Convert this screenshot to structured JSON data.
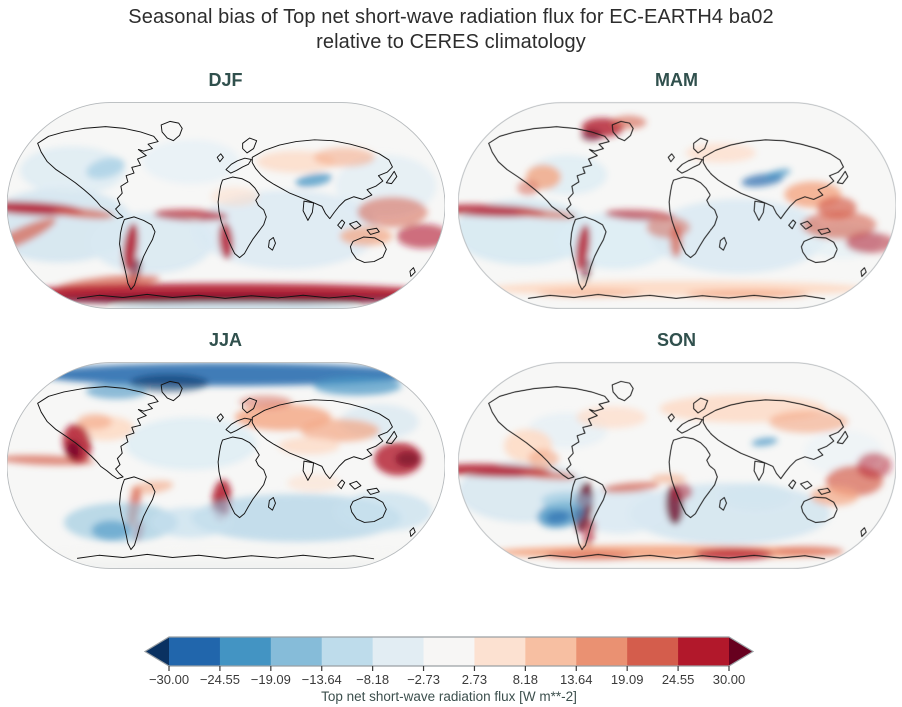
{
  "figure": {
    "title_line1": "Seasonal bias of Top net short-wave radiation flux for EC-EARTH4 ba02",
    "title_line2": "relative to CERES climatology"
  },
  "chart_data": {
    "type": "heatmap",
    "subtype": "global_map_grid",
    "projection": "Robinson",
    "title": "Seasonal bias of Top net short-wave radiation flux for EC-EARTH4 ba02 relative to CERES climatology",
    "model": "EC-EARTH4 ba02",
    "reference": "CERES climatology",
    "variable": "Top net short-wave radiation flux",
    "units": "W m**-2",
    "palette_name": "RdBu_r",
    "colorbar": {
      "vmin": -30.0,
      "vmax": 30.0,
      "extend": "both",
      "ticks": [
        "−30.00",
        "−24.55",
        "−19.09",
        "−13.64",
        "−8.18",
        "−2.73",
        "2.73",
        "8.18",
        "13.64",
        "19.09",
        "24.55",
        "30.00"
      ],
      "label": "Top net short-wave radiation flux [W m**-2]",
      "segment_colors": [
        "#2166ac",
        "#4394c3",
        "#86bcd9",
        "#bedceb",
        "#e2edf3",
        "#f7f6f5",
        "#fce1d1",
        "#f7bfa2",
        "#ea9172",
        "#d45d4c",
        "#b2182b"
      ],
      "under_color": "#0a3161",
      "over_color": "#67001f",
      "tick_color": "#3a3a3a",
      "label_color": "#3c4f4d"
    },
    "panels": [
      {
        "label": "DJF",
        "features": [
          [
            120,
            295,
            170,
            85,
            "#cfe3ef",
            0.8,
            0
          ],
          [
            330,
            335,
            140,
            70,
            "#d9e9f2",
            0.9,
            0
          ],
          [
            640,
            305,
            210,
            90,
            "#d9e9f2",
            0.8,
            0
          ],
          [
            865,
            205,
            115,
            70,
            "#dcebf3",
            0.6,
            0
          ],
          [
            150,
            170,
            120,
            55,
            "#dcebf3",
            0.8,
            0
          ],
          [
            420,
            150,
            110,
            50,
            "#e6f0f6",
            0.8,
            0
          ],
          [
            225,
            165,
            45,
            22,
            "#a9cfe5",
            0.8,
            -15
          ],
          [
            700,
            192,
            42,
            14,
            "#4393c3",
            0.75,
            -10
          ],
          [
            660,
            150,
            90,
            25,
            "#fddbc7",
            0.8,
            0
          ],
          [
            770,
            140,
            70,
            22,
            "#f4a582",
            0.55,
            0
          ],
          [
            520,
            230,
            55,
            22,
            "#fddbc7",
            0.5,
            0
          ],
          [
            60,
            257,
            115,
            15,
            "#b2182b",
            0.85,
            3
          ],
          [
            175,
            268,
            70,
            11,
            "#d6604d",
            0.7,
            5
          ],
          [
            420,
            272,
            85,
            13,
            "#b2182b",
            0.7,
            2
          ],
          [
            30,
            320,
            90,
            18,
            "#d6604d",
            0.7,
            -25
          ],
          [
            880,
            265,
            80,
            35,
            "#d6604d",
            0.55,
            0
          ],
          [
            950,
            320,
            60,
            28,
            "#b2182b",
            0.6,
            0
          ],
          [
            820,
            320,
            60,
            22,
            "#f4a582",
            0.7,
            0
          ],
          [
            282,
            345,
            16,
            55,
            "#b2182b",
            0.85,
            8
          ],
          [
            293,
            400,
            12,
            30,
            "#67001f",
            0.6,
            15
          ],
          [
            500,
            330,
            16,
            42,
            "#b2182b",
            0.8,
            -5
          ],
          [
            230,
            428,
            120,
            16,
            "#d6604d",
            0.7,
            -6
          ],
          [
            500,
            448,
            470,
            20,
            "#b2182b",
            0.9,
            0
          ],
          [
            500,
            464,
            470,
            12,
            "#67001f",
            0.75,
            0
          ],
          [
            520,
            485,
            280,
            12,
            "#d1e5f0",
            0.9,
            0
          ]
        ]
      },
      {
        "label": "MAM",
        "features": [
          [
            150,
            310,
            160,
            75,
            "#d6e9f2",
            0.9,
            0
          ],
          [
            360,
            330,
            130,
            65,
            "#dcecf4",
            0.9,
            0
          ],
          [
            640,
            320,
            200,
            85,
            "#d9e9f2",
            0.85,
            0
          ],
          [
            250,
            180,
            90,
            45,
            "#dcecf4",
            0.8,
            0
          ],
          [
            880,
            330,
            90,
            40,
            "#e3eff5",
            0.7,
            0
          ],
          [
            600,
            130,
            80,
            22,
            "#fddbc7",
            0.7,
            0
          ],
          [
            75,
            262,
            125,
            14,
            "#b2182b",
            0.8,
            2
          ],
          [
            200,
            270,
            70,
            10,
            "#d6604d",
            0.6,
            4
          ],
          [
            415,
            272,
            80,
            12,
            "#b2182b",
            0.65,
            3
          ],
          [
            480,
            300,
            50,
            25,
            "#d6604d",
            0.5,
            0
          ],
          [
            870,
            295,
            85,
            32,
            "#d6604d",
            0.6,
            0
          ],
          [
            940,
            335,
            55,
            24,
            "#b2182b",
            0.55,
            0
          ],
          [
            285,
            345,
            15,
            52,
            "#b2182b",
            0.8,
            8
          ],
          [
            293,
            400,
            11,
            28,
            "#67001f",
            0.5,
            12
          ],
          [
            498,
            330,
            14,
            38,
            "#d6604d",
            0.7,
            0
          ],
          [
            330,
            72,
            48,
            22,
            "#b2182b",
            0.8,
            0
          ],
          [
            305,
            90,
            24,
            13,
            "#67001f",
            0.6,
            0
          ],
          [
            390,
            60,
            40,
            15,
            "#d6604d",
            0.6,
            0
          ],
          [
            695,
            192,
            48,
            14,
            "#2166ac",
            0.7,
            -8
          ],
          [
            730,
            178,
            30,
            9,
            "#4393c3",
            0.7,
            -15
          ],
          [
            810,
            225,
            65,
            30,
            "#f4a582",
            0.8,
            0
          ],
          [
            865,
            255,
            45,
            25,
            "#d6604d",
            0.7,
            0
          ],
          [
            195,
            185,
            40,
            28,
            "#f4a582",
            0.8,
            0
          ],
          [
            160,
            210,
            25,
            18,
            "#d6604d",
            0.5,
            0
          ],
          [
            500,
            440,
            430,
            18,
            "#fddbc7",
            0.95,
            0
          ],
          [
            660,
            452,
            140,
            10,
            "#f4a582",
            0.7,
            0
          ],
          [
            300,
            450,
            120,
            10,
            "#f4a582",
            0.5,
            0
          ]
        ]
      },
      {
        "label": "JJA",
        "features": [
          [
            420,
            200,
            150,
            60,
            "#dcecf4",
            0.8,
            0
          ],
          [
            850,
            150,
            90,
            40,
            "#d1e5f0",
            0.6,
            0
          ],
          [
            500,
            42,
            430,
            26,
            "#2166ac",
            0.85,
            0
          ],
          [
            370,
            62,
            90,
            20,
            "#053061",
            0.55,
            0
          ],
          [
            800,
            68,
            100,
            22,
            "#4393c3",
            0.7,
            0
          ],
          [
            250,
            80,
            70,
            18,
            "#4393c3",
            0.6,
            0
          ],
          [
            630,
            140,
            110,
            30,
            "#f4a582",
            0.8,
            0
          ],
          [
            760,
            170,
            90,
            26,
            "#f4a582",
            0.7,
            0
          ],
          [
            690,
            205,
            70,
            20,
            "#fddbc7",
            0.8,
            0
          ],
          [
            590,
            105,
            60,
            15,
            "#d6604d",
            0.5,
            0
          ],
          [
            225,
            165,
            65,
            28,
            "#fddbc7",
            0.9,
            0
          ],
          [
            200,
            150,
            40,
            18,
            "#f4a582",
            0.6,
            0
          ],
          [
            90,
            238,
            110,
            11,
            "#d6604d",
            0.7,
            2
          ],
          [
            330,
            300,
            50,
            14,
            "#f4a582",
            0.6,
            -8
          ],
          [
            700,
            290,
            60,
            20,
            "#fddbc7",
            0.5,
            0
          ],
          [
            160,
            200,
            32,
            45,
            "#b2182b",
            0.85,
            -12
          ],
          [
            152,
            215,
            16,
            22,
            "#67001f",
            0.7,
            -12
          ],
          [
            893,
            235,
            55,
            38,
            "#b2182b",
            0.8,
            0
          ],
          [
            915,
            235,
            28,
            18,
            "#67001f",
            0.6,
            0
          ],
          [
            490,
            330,
            22,
            48,
            "#b2182b",
            0.85,
            5
          ],
          [
            487,
            348,
            12,
            24,
            "#67001f",
            0.7,
            5
          ],
          [
            290,
            345,
            13,
            48,
            "#d6604d",
            0.75,
            10
          ],
          [
            300,
            400,
            10,
            25,
            "#b2182b",
            0.5,
            14
          ],
          [
            260,
            380,
            130,
            45,
            "#92c5de",
            0.6,
            0
          ],
          [
            238,
            398,
            45,
            22,
            "#4393c3",
            0.6,
            0
          ],
          [
            660,
            370,
            240,
            55,
            "#a9cfe5",
            0.65,
            0
          ],
          [
            860,
            355,
            110,
            45,
            "#c6dfee",
            0.7,
            0
          ],
          [
            420,
            380,
            90,
            35,
            "#c6dfee",
            0.7,
            0
          ],
          [
            500,
            462,
            480,
            30,
            "#f6f6f4",
            1,
            0
          ],
          [
            500,
            482,
            480,
            14,
            "#f1f2f1",
            1,
            0
          ]
        ]
      },
      {
        "label": "SON",
        "features": [
          [
            150,
            310,
            150,
            70,
            "#d8e8f1",
            0.9,
            0
          ],
          [
            620,
            360,
            230,
            70,
            "#cfe3ef",
            0.8,
            0
          ],
          [
            370,
            350,
            110,
            55,
            "#d9e9f2",
            0.85,
            0
          ],
          [
            250,
            170,
            90,
            40,
            "#e3eef5",
            0.7,
            0
          ],
          [
            880,
            220,
            90,
            50,
            "#eaf1f6",
            0.6,
            0
          ],
          [
            680,
            320,
            80,
            30,
            "#d1e5f0",
            0.7,
            0
          ],
          [
            650,
            120,
            190,
            32,
            "#fddbc7",
            0.85,
            0
          ],
          [
            800,
            150,
            90,
            26,
            "#f4a582",
            0.6,
            0
          ],
          [
            350,
            140,
            80,
            25,
            "#fddbc7",
            0.7,
            0
          ],
          [
            160,
            205,
            55,
            38,
            "#fddbc7",
            0.9,
            0
          ],
          [
            195,
            235,
            35,
            22,
            "#f4a582",
            0.6,
            0
          ],
          [
            85,
            262,
            130,
            15,
            "#b2182b",
            0.85,
            2
          ],
          [
            205,
            272,
            65,
            10,
            "#d6604d",
            0.65,
            4
          ],
          [
            395,
            300,
            65,
            11,
            "#d6604d",
            0.7,
            -5
          ],
          [
            480,
            280,
            40,
            10,
            "#f4a582",
            0.6,
            0
          ],
          [
            287,
            345,
            20,
            58,
            "#67001f",
            0.8,
            8
          ],
          [
            300,
            405,
            13,
            32,
            "#b2182b",
            0.6,
            12
          ],
          [
            494,
            340,
            20,
            45,
            "#67001f",
            0.75,
            -3
          ],
          [
            510,
            310,
            25,
            20,
            "#b2182b",
            0.5,
            0
          ],
          [
            235,
            362,
            55,
            30,
            "#4393c3",
            0.75,
            -10
          ],
          [
            228,
            368,
            28,
            15,
            "#2166ac",
            0.6,
            -10
          ],
          [
            250,
            330,
            60,
            20,
            "#92c5de",
            0.6,
            0
          ],
          [
            905,
            285,
            65,
            35,
            "#d6604d",
            0.7,
            0
          ],
          [
            860,
            320,
            55,
            22,
            "#f4a582",
            0.7,
            0
          ],
          [
            950,
            250,
            40,
            30,
            "#b2182b",
            0.5,
            0
          ],
          [
            700,
            196,
            30,
            9,
            "#4393c3",
            0.7,
            -8
          ],
          [
            480,
            448,
            400,
            16,
            "#f4a582",
            0.9,
            0
          ],
          [
            630,
            452,
            90,
            14,
            "#b2182b",
            0.7,
            0
          ],
          [
            300,
            455,
            100,
            11,
            "#d6604d",
            0.55,
            0
          ],
          [
            800,
            445,
            80,
            12,
            "#d6604d",
            0.5,
            0
          ]
        ]
      }
    ]
  }
}
